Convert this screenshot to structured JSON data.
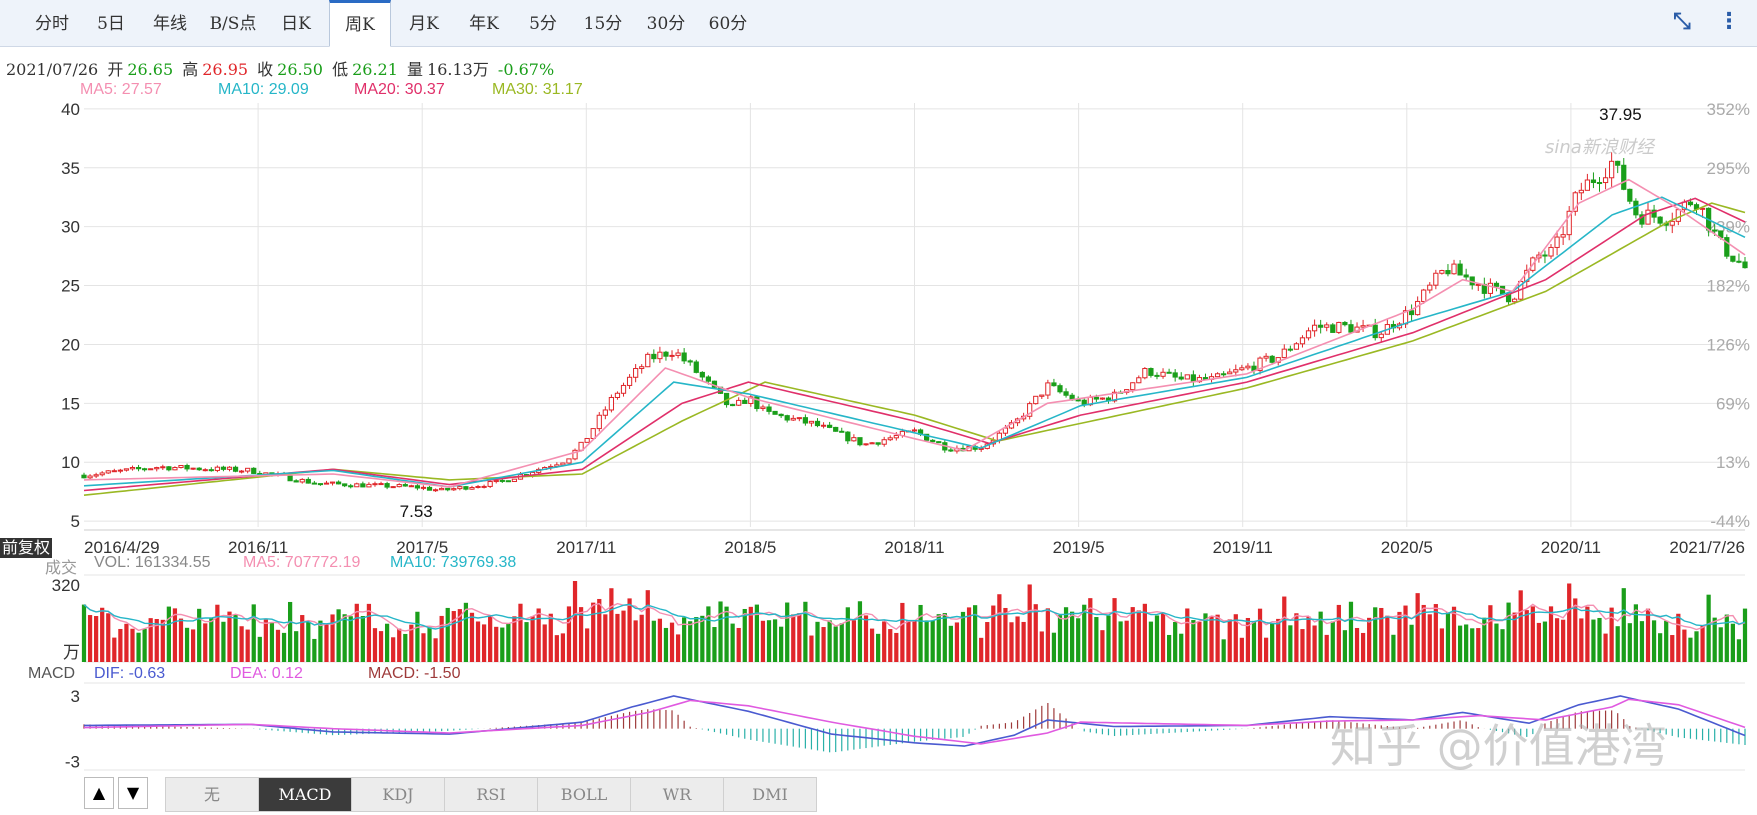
{
  "tabs": [
    {
      "label": "分时",
      "active": false
    },
    {
      "label": "5日",
      "active": false
    },
    {
      "label": "年线",
      "active": false
    },
    {
      "label": "B/S点",
      "active": false
    },
    {
      "label": "日K",
      "active": false
    },
    {
      "label": "周K",
      "active": true
    },
    {
      "label": "月K",
      "active": false
    },
    {
      "label": "年K",
      "active": false
    },
    {
      "label": "5分",
      "active": false
    },
    {
      "label": "15分",
      "active": false
    },
    {
      "label": "30分",
      "active": false
    },
    {
      "label": "60分",
      "active": false
    }
  ],
  "toolbar_icons": [
    "compress-icon",
    "more-vertical-icon"
  ],
  "info": {
    "date": "2021/07/26",
    "open_label": "开",
    "open": "26.65",
    "high_label": "高",
    "high": "26.95",
    "close_label": "收",
    "close": "26.50",
    "low_label": "低",
    "low": "26.21",
    "vol_label": "量",
    "vol": "16.13万",
    "change": "-0.67%"
  },
  "ma_legend": [
    {
      "text": "MA5: 27.57",
      "color": "#f48fb1"
    },
    {
      "text": "MA10: 29.09",
      "color": "#26b6c8"
    },
    {
      "text": "MA20: 30.37",
      "color": "#e0306a"
    },
    {
      "text": "MA30: 31.17",
      "color": "#9ab823"
    }
  ],
  "vol_legend": {
    "prefix": "成交",
    "vol": "VOL: 161334.55",
    "ma5": "MA5: 707772.19",
    "ma10": "MA10: 739769.38",
    "unit": "万"
  },
  "macd_legend": {
    "name": "MACD",
    "dif": "DIF: -0.63",
    "dea": "DEA: 0.12",
    "macd": "MACD: -1.50"
  },
  "fuquan_label": "前复权",
  "sina_logo": "sina新浪财经",
  "watermark": "知乎 @价值港湾",
  "indicator_tabs": [
    {
      "label": "无",
      "active": false
    },
    {
      "label": "MACD",
      "active": true
    },
    {
      "label": "KDJ",
      "active": false
    },
    {
      "label": "RSI",
      "active": false
    },
    {
      "label": "BOLL",
      "active": false
    },
    {
      "label": "WR",
      "active": false
    },
    {
      "label": "DMI",
      "active": false
    }
  ],
  "arrows": [
    "▲",
    "▼"
  ],
  "colors": {
    "up": "#e0262a",
    "down": "#1a9e1a",
    "ma5": "#f48fb1",
    "ma10": "#26b6c8",
    "ma20": "#e0306a",
    "ma30": "#9ab823",
    "dif": "#4a5ad0",
    "dea": "#e05ae0",
    "macd": "#9e3a3a",
    "grid": "#e4e4e4"
  },
  "chart_data": {
    "type": "candlestick",
    "period": "weekly",
    "price_axis": {
      "ticks": [
        5,
        10,
        15,
        20,
        25,
        30,
        35,
        40
      ],
      "ylim": [
        4.5,
        40.5
      ]
    },
    "pct_axis": {
      "ticks": [
        "352%",
        "295%",
        "239%",
        "182%",
        "126%",
        "69%",
        "13%",
        "-44%"
      ]
    },
    "date_ticks": [
      "2016/4/29",
      "2016/11",
      "2017/5",
      "2017/11",
      "2018/5",
      "2018/11",
      "2019/5",
      "2019/11",
      "2020/5",
      "2020/11",
      "2021/7/26"
    ],
    "annotations": [
      {
        "text": "37.95",
        "kind": "max"
      },
      {
        "text": "7.53",
        "kind": "min"
      }
    ],
    "close_keypoints": [
      {
        "t": 0,
        "v": 8.9
      },
      {
        "t": 0.045,
        "v": 9.6
      },
      {
        "t": 0.1,
        "v": 9.3
      },
      {
        "t": 0.14,
        "v": 8.2
      },
      {
        "t": 0.2,
        "v": 7.9
      },
      {
        "t": 0.215,
        "v": 7.6
      },
      {
        "t": 0.25,
        "v": 8.3
      },
      {
        "t": 0.29,
        "v": 10.2
      },
      {
        "t": 0.3,
        "v": 11.5
      },
      {
        "t": 0.32,
        "v": 15.8
      },
      {
        "t": 0.34,
        "v": 18.8
      },
      {
        "t": 0.355,
        "v": 19.5
      },
      {
        "t": 0.37,
        "v": 17.5
      },
      {
        "t": 0.39,
        "v": 14.5
      },
      {
        "t": 0.4,
        "v": 15.5
      },
      {
        "t": 0.41,
        "v": 14.2
      },
      {
        "t": 0.44,
        "v": 13.2
      },
      {
        "t": 0.47,
        "v": 11.5
      },
      {
        "t": 0.5,
        "v": 12.6
      },
      {
        "t": 0.52,
        "v": 11.2
      },
      {
        "t": 0.54,
        "v": 11.3
      },
      {
        "t": 0.56,
        "v": 13.2
      },
      {
        "t": 0.58,
        "v": 16.5
      },
      {
        "t": 0.6,
        "v": 15.0
      },
      {
        "t": 0.62,
        "v": 15.6
      },
      {
        "t": 0.64,
        "v": 17.8
      },
      {
        "t": 0.66,
        "v": 17.0
      },
      {
        "t": 0.68,
        "v": 17.0
      },
      {
        "t": 0.72,
        "v": 19.0
      },
      {
        "t": 0.74,
        "v": 21.5
      },
      {
        "t": 0.76,
        "v": 21.5
      },
      {
        "t": 0.78,
        "v": 21.0
      },
      {
        "t": 0.8,
        "v": 23.0
      },
      {
        "t": 0.82,
        "v": 26.5
      },
      {
        "t": 0.845,
        "v": 24.8
      },
      {
        "t": 0.86,
        "v": 24.0
      },
      {
        "t": 0.875,
        "v": 27.5
      },
      {
        "t": 0.885,
        "v": 27.8
      },
      {
        "t": 0.9,
        "v": 33.0
      },
      {
        "t": 0.92,
        "v": 35.5
      },
      {
        "t": 0.935,
        "v": 31.0
      },
      {
        "t": 0.955,
        "v": 30.8
      },
      {
        "t": 0.97,
        "v": 32.5
      },
      {
        "t": 0.985,
        "v": 28.5
      },
      {
        "t": 1,
        "v": 26.5
      }
    ],
    "ma_keypoints": {
      "ma5": [
        [
          0,
          8.5
        ],
        [
          0.15,
          9.0
        ],
        [
          0.22,
          7.9
        ],
        [
          0.3,
          11.0
        ],
        [
          0.35,
          18.0
        ],
        [
          0.4,
          15.5
        ],
        [
          0.5,
          12.0
        ],
        [
          0.53,
          11.0
        ],
        [
          0.58,
          15.0
        ],
        [
          0.7,
          17.5
        ],
        [
          0.8,
          23.0
        ],
        [
          0.83,
          25.5
        ],
        [
          0.86,
          24.5
        ],
        [
          0.9,
          32.0
        ],
        [
          0.93,
          34.0
        ],
        [
          0.96,
          31.5
        ],
        [
          1,
          27.6
        ]
      ],
      "ma10": [
        [
          0,
          8.0
        ],
        [
          0.15,
          9.3
        ],
        [
          0.22,
          7.9
        ],
        [
          0.3,
          10.0
        ],
        [
          0.355,
          16.8
        ],
        [
          0.4,
          15.8
        ],
        [
          0.5,
          12.5
        ],
        [
          0.54,
          11.2
        ],
        [
          0.6,
          14.8
        ],
        [
          0.7,
          17.2
        ],
        [
          0.8,
          22.0
        ],
        [
          0.86,
          24.5
        ],
        [
          0.92,
          31.0
        ],
        [
          0.95,
          32.5
        ],
        [
          1,
          29.1
        ]
      ],
      "ma20": [
        [
          0,
          7.6
        ],
        [
          0.15,
          9.4
        ],
        [
          0.22,
          8.1
        ],
        [
          0.3,
          9.4
        ],
        [
          0.36,
          15.0
        ],
        [
          0.4,
          16.8
        ],
        [
          0.5,
          13.5
        ],
        [
          0.545,
          11.6
        ],
        [
          0.6,
          14.0
        ],
        [
          0.7,
          16.8
        ],
        [
          0.8,
          21.0
        ],
        [
          0.88,
          25.5
        ],
        [
          0.94,
          31.0
        ],
        [
          0.97,
          32.4
        ],
        [
          1,
          30.4
        ]
      ],
      "ma30": [
        [
          0,
          7.2
        ],
        [
          0.15,
          9.4
        ],
        [
          0.22,
          8.5
        ],
        [
          0.3,
          9.0
        ],
        [
          0.36,
          13.5
        ],
        [
          0.41,
          16.8
        ],
        [
          0.5,
          14.0
        ],
        [
          0.55,
          11.8
        ],
        [
          0.6,
          13.3
        ],
        [
          0.7,
          16.3
        ],
        [
          0.8,
          20.3
        ],
        [
          0.88,
          24.5
        ],
        [
          0.955,
          30.5
        ],
        [
          0.98,
          32.0
        ],
        [
          1,
          31.2
        ]
      ]
    },
    "volume_axis": {
      "ticks": [
        "320",
        "万"
      ]
    },
    "macd_axis": {
      "ticks": [
        3,
        -3
      ],
      "ylim": [
        -3.8,
        4.2
      ]
    },
    "macd_keypoints": {
      "dif": [
        [
          0,
          0.3
        ],
        [
          0.1,
          0.4
        ],
        [
          0.15,
          -0.3
        ],
        [
          0.22,
          -0.5
        ],
        [
          0.3,
          0.6
        ],
        [
          0.33,
          2.0
        ],
        [
          0.355,
          3.0
        ],
        [
          0.4,
          1.6
        ],
        [
          0.45,
          -0.5
        ],
        [
          0.5,
          -1.3
        ],
        [
          0.53,
          -1.6
        ],
        [
          0.56,
          -0.6
        ],
        [
          0.58,
          0.8
        ],
        [
          0.62,
          0.2
        ],
        [
          0.7,
          0.3
        ],
        [
          0.75,
          1.1
        ],
        [
          0.8,
          0.8
        ],
        [
          0.83,
          1.5
        ],
        [
          0.87,
          0.5
        ],
        [
          0.9,
          2.2
        ],
        [
          0.925,
          3.0
        ],
        [
          0.96,
          1.8
        ],
        [
          1,
          -0.63
        ]
      ],
      "dea": [
        [
          0,
          0.1
        ],
        [
          0.1,
          0.4
        ],
        [
          0.15,
          0.0
        ],
        [
          0.22,
          -0.4
        ],
        [
          0.3,
          0.3
        ],
        [
          0.34,
          1.5
        ],
        [
          0.365,
          2.6
        ],
        [
          0.4,
          2.1
        ],
        [
          0.45,
          0.6
        ],
        [
          0.5,
          -0.7
        ],
        [
          0.54,
          -1.4
        ],
        [
          0.58,
          -0.4
        ],
        [
          0.6,
          0.6
        ],
        [
          0.7,
          0.3
        ],
        [
          0.75,
          0.7
        ],
        [
          0.8,
          0.8
        ],
        [
          0.84,
          1.2
        ],
        [
          0.88,
          0.8
        ],
        [
          0.92,
          2.0
        ],
        [
          0.93,
          2.7
        ],
        [
          0.96,
          2.2
        ],
        [
          1,
          0.12
        ]
      ]
    }
  }
}
